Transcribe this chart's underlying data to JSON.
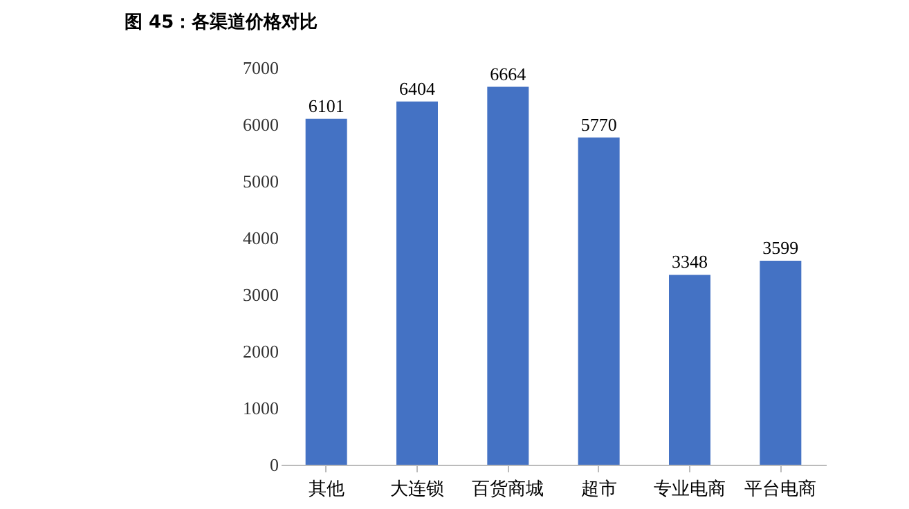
{
  "chart_data": {
    "type": "bar",
    "title": "图 45：各渠道价格对比",
    "categories": [
      "其他",
      "大连锁",
      "百货商城",
      "超市",
      "专业电商",
      "平台电商"
    ],
    "values": [
      6101,
      6404,
      6664,
      5770,
      3348,
      3599
    ],
    "color": "#4472c4",
    "ylim": [
      0,
      7000
    ],
    "yticks": [
      0,
      1000,
      2000,
      3000,
      4000,
      5000,
      6000,
      7000
    ],
    "grid": false,
    "data_labels": true
  }
}
